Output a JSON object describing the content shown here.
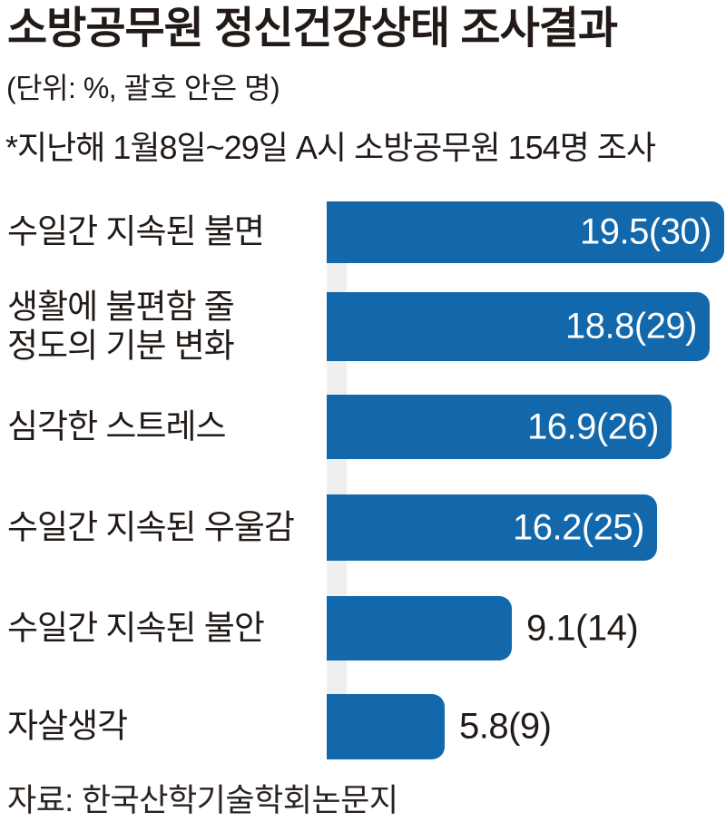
{
  "title": "소방공무원 정신건강상태 조사결과",
  "subtitle": "(단위: %, 괄호 안은 명)",
  "note": "*지난해 1월8일~29일 A시 소방공무원 154명 조사",
  "source": "자료: 한국산학기술학회논문지",
  "colors": {
    "bar": "#1268ab",
    "axis_strip": "#efefef",
    "text": "#221a17",
    "value_inside": "#ffffff"
  },
  "chart_data": {
    "type": "bar",
    "orientation": "horizontal",
    "title": "소방공무원 정신건강상태 조사결과",
    "unit_note": "단위: %, 괄호 안은 명",
    "survey_note": "*지난해 1월8일~29일 A시 소방공무원 154명 조사",
    "source": "자료: 한국산학기술학회논문지",
    "categories": [
      "수일간 지속된 불면",
      "생활에 불편함 줄 정도의 기분 변화",
      "심각한 스트레스",
      "수일간 지속된 우울감",
      "수일간 지속된 불안",
      "자살생각"
    ],
    "category_lines": [
      [
        "수일간 지속된 불면"
      ],
      [
        "생활에 불편함 줄",
        "정도의 기분 변화"
      ],
      [
        "심각한 스트레스"
      ],
      [
        "수일간 지속된 우울감"
      ],
      [
        "수일간 지속된 불안"
      ],
      [
        "자살생각"
      ]
    ],
    "values": [
      19.5,
      18.8,
      16.9,
      16.2,
      9.1,
      5.8
    ],
    "counts": [
      30,
      29,
      26,
      25,
      14,
      9
    ],
    "labels": [
      "19.5(30)",
      "18.8(29)",
      "16.9(26)",
      "16.2(25)",
      "9.1(14)",
      "5.8(9)"
    ],
    "xlim": [
      0,
      19.5
    ],
    "legend": false,
    "grid": false
  }
}
